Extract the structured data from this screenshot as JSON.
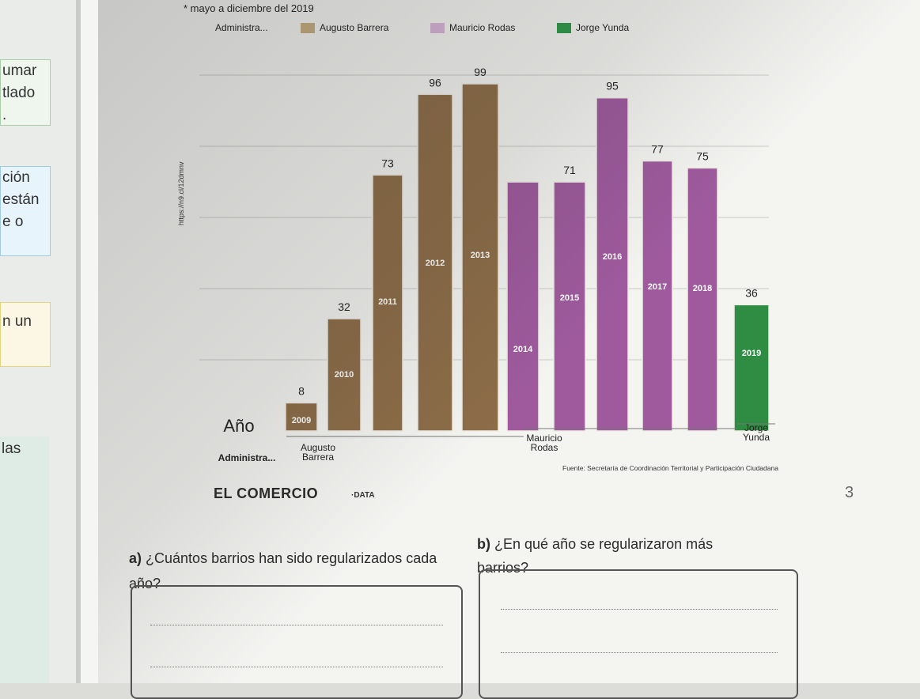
{
  "left_margin": {
    "box1": [
      "umar",
      "tlado",
      "."
    ],
    "box2": [
      "ción",
      "están",
      "e o"
    ],
    "box3": [
      "n un"
    ],
    "box4": [
      "las"
    ]
  },
  "header_note": "* mayo a diciembre del 2019",
  "legend": [
    {
      "label": "Administra...",
      "color": null
    },
    {
      "label": "Augusto Barrera",
      "color": "#c6ae7f"
    },
    {
      "label": "Mauricio Rodas",
      "color": "#d9b5d9"
    },
    {
      "label": "Jorge Yunda",
      "color": "#2e9a49"
    }
  ],
  "side_url": "https://n9.cl/12dmnv",
  "colors": {
    "barrera": "#8d6d48",
    "rodas": "#9e5a9d",
    "yunda": "#2e8d42",
    "grid": "#c9c9c4"
  },
  "chart_data": {
    "type": "bar",
    "categories": [
      "2009",
      "2010",
      "2011",
      "2012",
      "2013",
      "2014",
      "2015",
      "2016",
      "2017",
      "2018",
      "2019"
    ],
    "values": [
      8,
      32,
      73,
      96,
      99,
      71,
      71,
      95,
      77,
      75,
      36
    ],
    "value_labels": [
      "8",
      "32",
      "73",
      "96",
      "99",
      "",
      "71",
      "95",
      "77",
      "75",
      "36"
    ],
    "series_by_bar": [
      "Augusto Barrera",
      "Augusto Barrera",
      "Augusto Barrera",
      "Augusto Barrera",
      "Augusto Barrera",
      "Mauricio Rodas",
      "Mauricio Rodas",
      "Mauricio Rodas",
      "Mauricio Rodas",
      "Mauricio Rodas",
      "Jorge Yunda"
    ],
    "xlabel": "Año",
    "group_axis_label": "Administra...",
    "groups": [
      {
        "name": "Augusto Barrera",
        "years": [
          "2009",
          "2013"
        ]
      },
      {
        "name": "Mauricio Rodas",
        "years": [
          "2014",
          "2018"
        ]
      },
      {
        "name": "Jorge Yunda",
        "years": [
          "2019",
          "2019"
        ]
      }
    ],
    "ylim": [
      0,
      110
    ],
    "grid": true
  },
  "source": "Fuente: Secretaría de Coordinación Territorial y Participación Ciudadana",
  "brand": {
    "name": "EL COMERCIO",
    "suffix": "·DATA"
  },
  "questions": {
    "a_letter": "a)",
    "a_text": "¿Cuántos barrios han sido regularizados cada año?",
    "b_letter": "b)",
    "b_text": "¿En qué año se regularizaron más barrios?"
  },
  "margin_mark": "3"
}
